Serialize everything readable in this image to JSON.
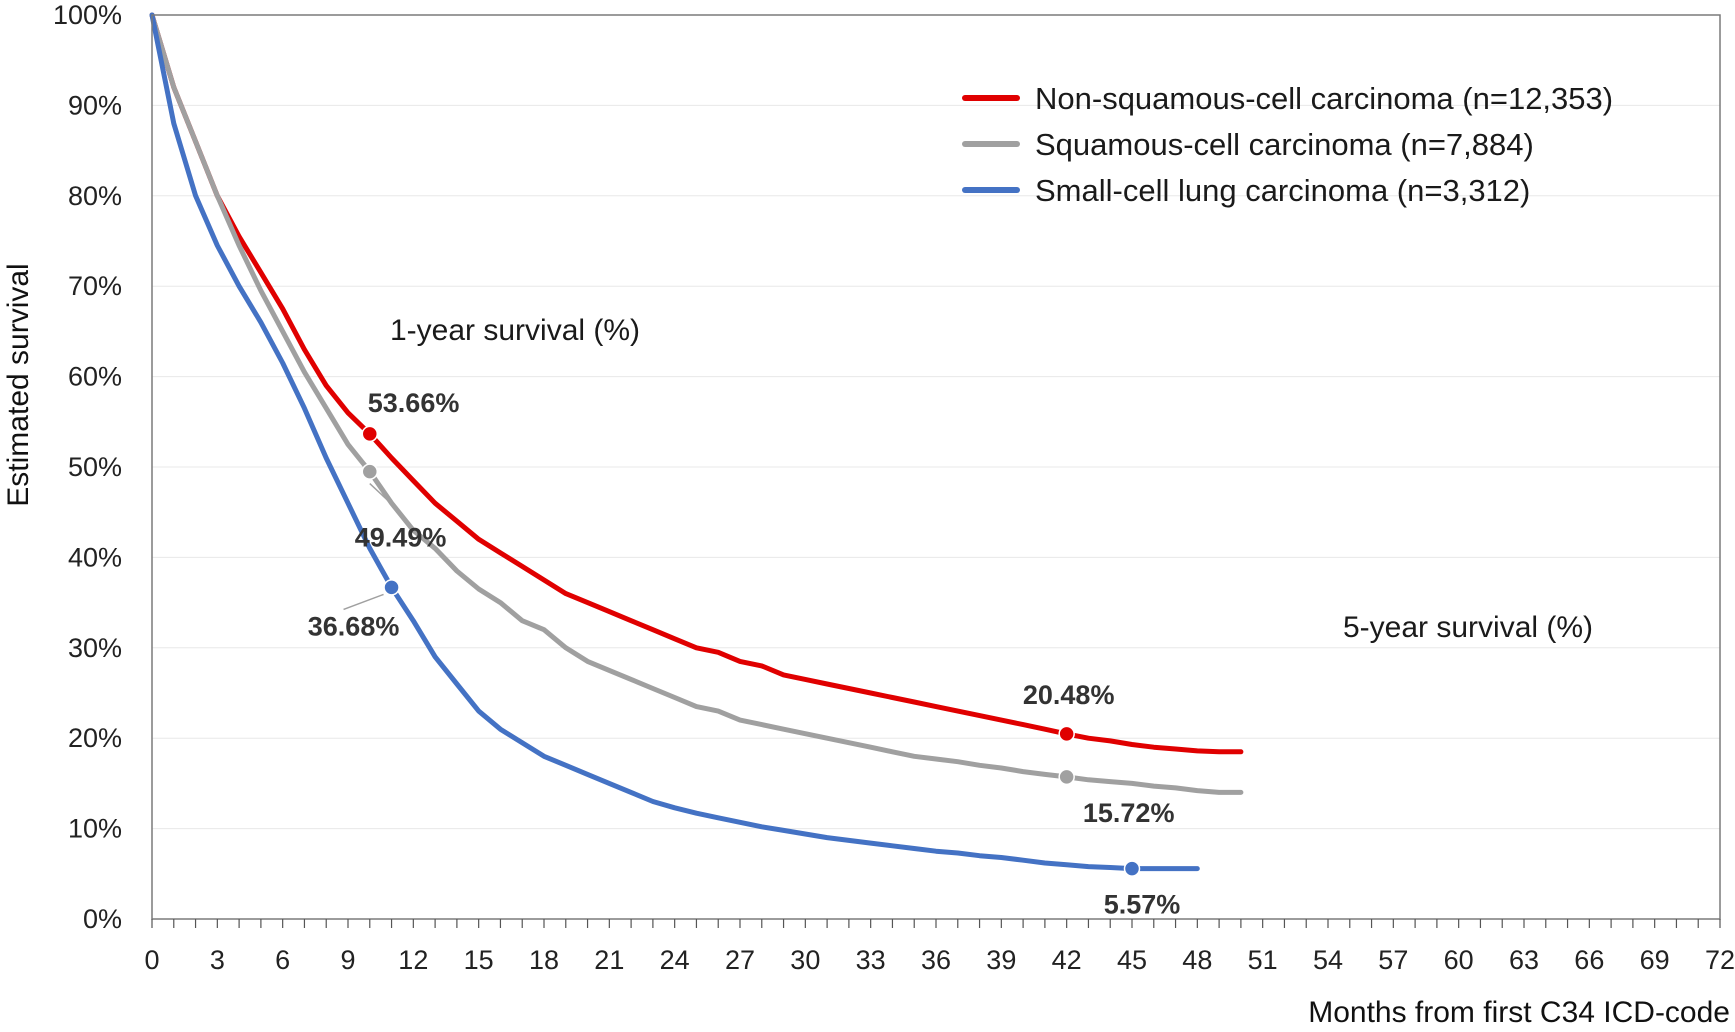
{
  "chart_data": {
    "type": "line",
    "xlabel": "Months from first C34 ICD-code",
    "ylabel": "Estimated survival",
    "xlim": [
      0,
      72
    ],
    "ylim": [
      0,
      100
    ],
    "x_ticks": [
      0,
      3,
      6,
      9,
      12,
      15,
      18,
      21,
      24,
      27,
      30,
      33,
      36,
      39,
      42,
      45,
      48,
      51,
      54,
      57,
      60,
      63,
      66,
      69,
      72
    ],
    "y_ticks": [
      0,
      10,
      20,
      30,
      40,
      50,
      60,
      70,
      80,
      90,
      100
    ],
    "y_tick_labels": [
      "0%",
      "10%",
      "20%",
      "30%",
      "40%",
      "50%",
      "60%",
      "70%",
      "80%",
      "90%",
      "100%"
    ],
    "grid": "horizontal",
    "legend_position": "top-right",
    "series": [
      {
        "name": "Non-squamous-cell carcinoma (n=12,353)",
        "color": "#e00000",
        "points": [
          [
            0,
            100
          ],
          [
            1,
            92
          ],
          [
            2,
            86
          ],
          [
            3,
            80
          ],
          [
            4,
            75.5
          ],
          [
            5,
            71.5
          ],
          [
            6,
            67.5
          ],
          [
            7,
            63
          ],
          [
            8,
            59
          ],
          [
            9,
            56
          ],
          [
            10,
            53.66
          ],
          [
            11,
            51
          ],
          [
            12,
            48.5
          ],
          [
            13,
            46
          ],
          [
            14,
            44
          ],
          [
            15,
            42
          ],
          [
            16,
            40.5
          ],
          [
            17,
            39
          ],
          [
            18,
            37.5
          ],
          [
            19,
            36
          ],
          [
            20,
            35
          ],
          [
            21,
            34
          ],
          [
            22,
            33
          ],
          [
            23,
            32
          ],
          [
            24,
            31
          ],
          [
            25,
            30
          ],
          [
            26,
            29.5
          ],
          [
            27,
            28.5
          ],
          [
            28,
            28
          ],
          [
            29,
            27
          ],
          [
            30,
            26.5
          ],
          [
            31,
            26
          ],
          [
            32,
            25.5
          ],
          [
            33,
            25
          ],
          [
            34,
            24.5
          ],
          [
            35,
            24
          ],
          [
            36,
            23.5
          ],
          [
            37,
            23
          ],
          [
            38,
            22.5
          ],
          [
            39,
            22
          ],
          [
            40,
            21.5
          ],
          [
            41,
            21
          ],
          [
            42,
            20.48
          ],
          [
            43,
            20
          ],
          [
            44,
            19.7
          ],
          [
            45,
            19.3
          ],
          [
            46,
            19
          ],
          [
            47,
            18.8
          ],
          [
            48,
            18.6
          ],
          [
            49,
            18.5
          ],
          [
            50,
            18.5
          ]
        ],
        "annotations": [
          {
            "x": 10,
            "y": 53.66,
            "label": "53.66%"
          },
          {
            "x": 42,
            "y": 20.48,
            "label": "20.48%"
          }
        ]
      },
      {
        "name": "Squamous-cell carcinoma (n=7,884)",
        "color": "#a0a0a0",
        "points": [
          [
            0,
            100
          ],
          [
            1,
            92
          ],
          [
            2,
            86
          ],
          [
            3,
            80
          ],
          [
            4,
            74.5
          ],
          [
            5,
            69.5
          ],
          [
            6,
            65
          ],
          [
            7,
            60.5
          ],
          [
            8,
            56.5
          ],
          [
            9,
            52.5
          ],
          [
            10,
            49.49
          ],
          [
            11,
            46
          ],
          [
            12,
            43
          ],
          [
            13,
            41
          ],
          [
            14,
            38.5
          ],
          [
            15,
            36.5
          ],
          [
            16,
            35
          ],
          [
            17,
            33
          ],
          [
            18,
            32
          ],
          [
            19,
            30
          ],
          [
            20,
            28.5
          ],
          [
            21,
            27.5
          ],
          [
            22,
            26.5
          ],
          [
            23,
            25.5
          ],
          [
            24,
            24.5
          ],
          [
            25,
            23.5
          ],
          [
            26,
            23
          ],
          [
            27,
            22
          ],
          [
            28,
            21.5
          ],
          [
            29,
            21
          ],
          [
            30,
            20.5
          ],
          [
            31,
            20
          ],
          [
            32,
            19.5
          ],
          [
            33,
            19
          ],
          [
            34,
            18.5
          ],
          [
            35,
            18
          ],
          [
            36,
            17.7
          ],
          [
            37,
            17.4
          ],
          [
            38,
            17
          ],
          [
            39,
            16.7
          ],
          [
            40,
            16.3
          ],
          [
            41,
            16
          ],
          [
            42,
            15.72
          ],
          [
            43,
            15.4
          ],
          [
            44,
            15.2
          ],
          [
            45,
            15
          ],
          [
            46,
            14.7
          ],
          [
            47,
            14.5
          ],
          [
            48,
            14.2
          ],
          [
            49,
            14
          ],
          [
            50,
            14
          ]
        ],
        "annotations": [
          {
            "x": 10,
            "y": 49.49,
            "label": "49.49%"
          },
          {
            "x": 42,
            "y": 15.72,
            "label": "15.72%"
          }
        ]
      },
      {
        "name": "Small-cell lung carcinoma (n=3,312)",
        "color": "#4472c4",
        "points": [
          [
            0,
            100
          ],
          [
            1,
            88
          ],
          [
            2,
            80
          ],
          [
            3,
            74.5
          ],
          [
            4,
            70
          ],
          [
            5,
            66
          ],
          [
            6,
            61.5
          ],
          [
            7,
            56.5
          ],
          [
            8,
            51
          ],
          [
            9,
            46
          ],
          [
            10,
            41
          ],
          [
            11,
            36.68
          ],
          [
            12,
            33
          ],
          [
            13,
            29
          ],
          [
            14,
            26
          ],
          [
            15,
            23
          ],
          [
            16,
            21
          ],
          [
            17,
            19.5
          ],
          [
            18,
            18
          ],
          [
            19,
            17
          ],
          [
            20,
            16
          ],
          [
            21,
            15
          ],
          [
            22,
            14
          ],
          [
            23,
            13
          ],
          [
            24,
            12.3
          ],
          [
            25,
            11.7
          ],
          [
            26,
            11.2
          ],
          [
            27,
            10.7
          ],
          [
            28,
            10.2
          ],
          [
            29,
            9.8
          ],
          [
            30,
            9.4
          ],
          [
            31,
            9
          ],
          [
            32,
            8.7
          ],
          [
            33,
            8.4
          ],
          [
            34,
            8.1
          ],
          [
            35,
            7.8
          ],
          [
            36,
            7.5
          ],
          [
            37,
            7.3
          ],
          [
            38,
            7
          ],
          [
            39,
            6.8
          ],
          [
            40,
            6.5
          ],
          [
            41,
            6.2
          ],
          [
            42,
            6
          ],
          [
            43,
            5.8
          ],
          [
            44,
            5.7
          ],
          [
            45,
            5.57
          ],
          [
            46,
            5.57
          ],
          [
            47,
            5.57
          ],
          [
            48,
            5.57
          ]
        ],
        "annotations": [
          {
            "x": 11,
            "y": 36.68,
            "label": "36.68%"
          },
          {
            "x": 45,
            "y": 5.57,
            "label": "5.57%"
          }
        ]
      }
    ],
    "annotations": [
      {
        "text": "1-year survival (%)"
      },
      {
        "text": "5-year survival (%)"
      }
    ]
  }
}
